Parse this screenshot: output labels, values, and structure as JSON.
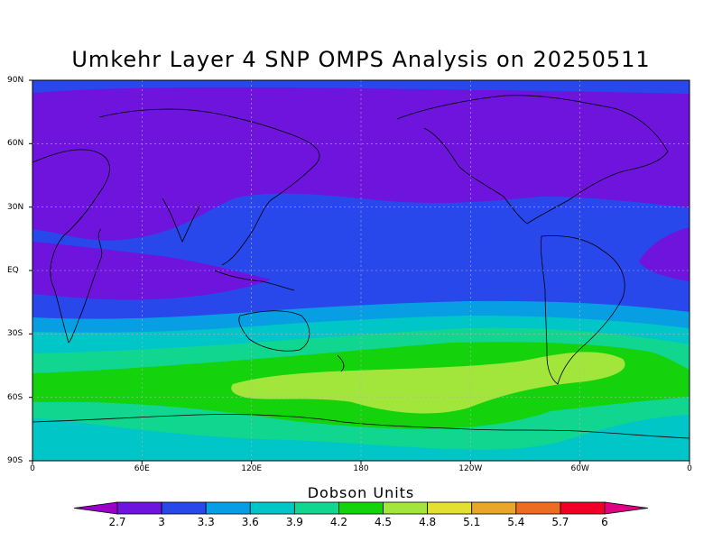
{
  "title": "Umkehr Layer 4 SNP OMPS Analysis on 20250511",
  "lat_labels": [
    "90N",
    "60N",
    "30N",
    "EQ",
    "30S",
    "60S",
    "90S"
  ],
  "lon_labels": [
    "0",
    "60E",
    "120E",
    "180",
    "120W",
    "60W",
    "0"
  ],
  "legend": {
    "title": "Dobson Units",
    "ticks": [
      "2.7",
      "3",
      "3.3",
      "3.6",
      "3.9",
      "4.2",
      "4.5",
      "4.8",
      "5.1",
      "5.4",
      "5.7",
      "6"
    ],
    "colors": [
      "#9a00c8",
      "#6e14dc",
      "#2848ec",
      "#089ee4",
      "#00c6c8",
      "#10d690",
      "#14d20c",
      "#a2e63c",
      "#e4e032",
      "#e8a62a",
      "#ec6c24",
      "#f00024",
      "#e00082"
    ]
  },
  "map_data": {
    "variable": "Umkehr Layer 4 ozone",
    "units": "Dobson Units",
    "date": "20250511",
    "projection": "equirectangular 0 to 360 longitude, 90S to 90N"
  }
}
